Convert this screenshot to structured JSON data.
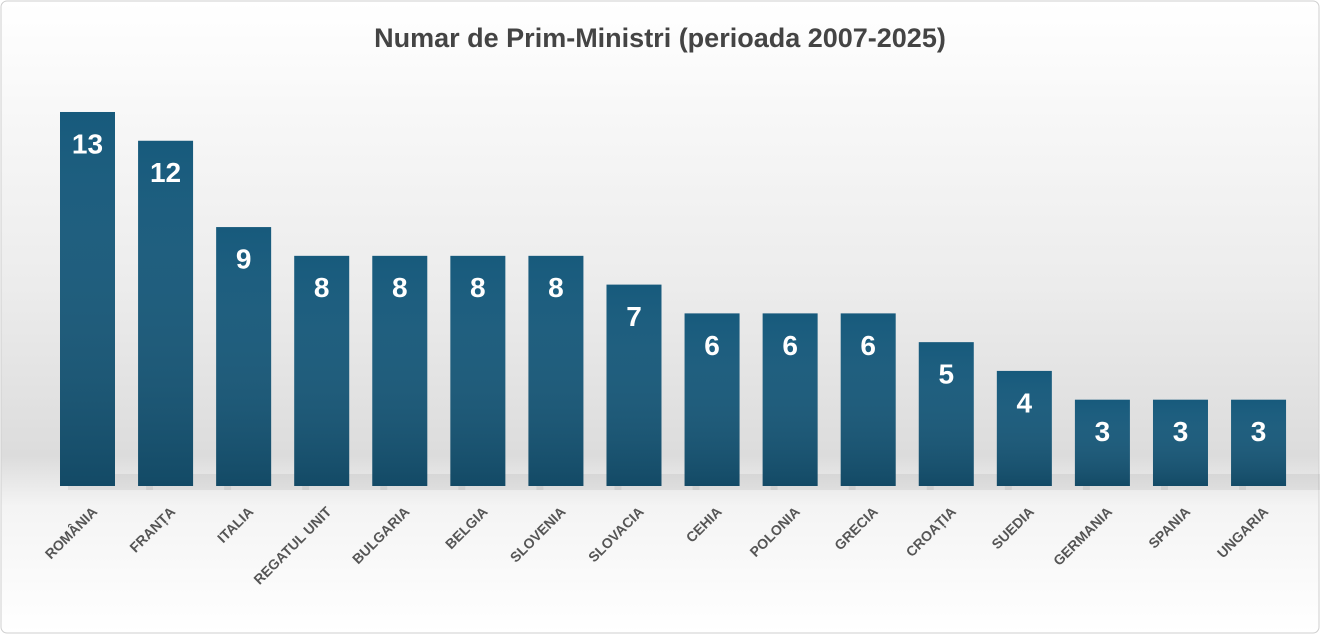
{
  "chart_data": {
    "type": "bar",
    "title": "Numar de Prim-Ministri (perioada 2007-2025)",
    "categories": [
      "ROMÂNIA",
      "FRANȚA",
      "ITALIA",
      "REGATUL UNIT",
      "BULGARIA",
      "BELGIA",
      "SLOVENIA",
      "SLOVACIA",
      "CEHIA",
      "POLONIA",
      "GRECIA",
      "CROAȚIA",
      "SUEDIA",
      "GERMANIA",
      "SPANIA",
      "UNGARIA"
    ],
    "values": [
      13,
      12,
      9,
      8,
      8,
      8,
      8,
      7,
      6,
      6,
      6,
      5,
      4,
      3,
      3,
      3
    ],
    "color": "#175a7c"
  }
}
